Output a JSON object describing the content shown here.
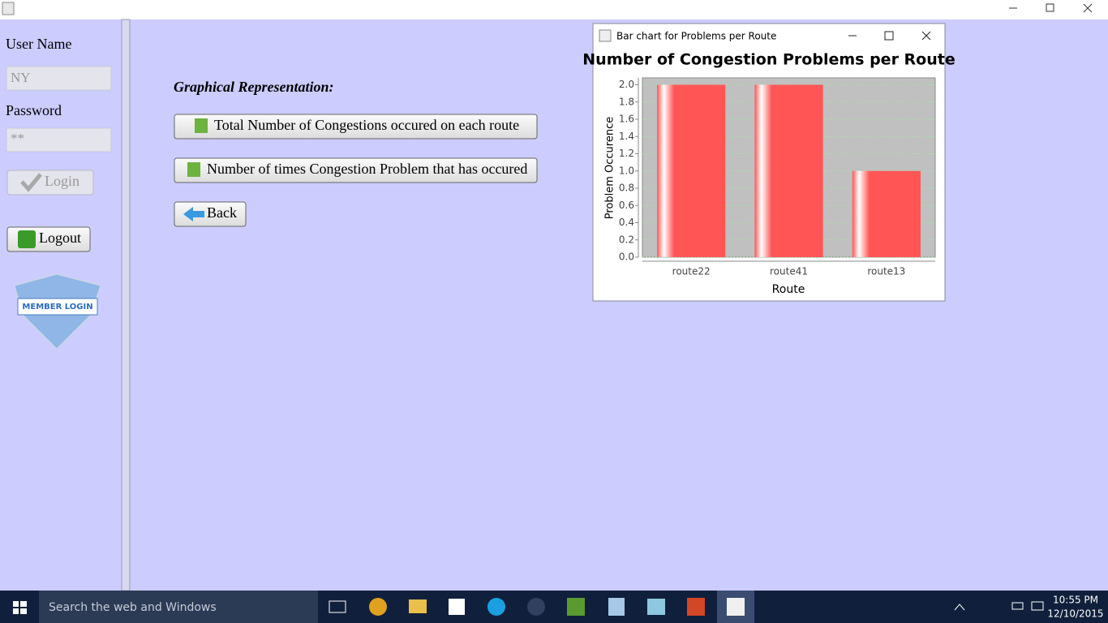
{
  "app": {
    "user_name_label": "User Name",
    "user_name_value": "NY",
    "password_label": "Password",
    "password_value": "**",
    "login_button": "Login",
    "logout_button": "Logout",
    "member_badge": "MEMBER LOGIN",
    "section_heading": "Graphical Representation:",
    "buttons": [
      "Total Number of Congestions occured on each route",
      "Number of times Congestion Problem that has occured",
      "Back"
    ],
    "chart_window_title": "Bar chart for Problems per Route"
  },
  "taskbar": {
    "search": "Search the web and Windows",
    "time": "10:55 PM",
    "date": "12/10/2015"
  },
  "chart_data": {
    "type": "bar",
    "title": "Number of Congestion Problems per Route",
    "x_label": "Route",
    "y_label": "Problem Occurence",
    "categories": [
      "route22",
      "route41",
      "route13"
    ],
    "values": [
      2,
      2,
      1
    ],
    "color": "#ff5555",
    "ylim": [
      0,
      2.08
    ],
    "yticks": [
      {
        "value": 0,
        "label": "0.0"
      },
      0.2,
      0.4,
      0.6,
      0.8,
      {
        "value": 1,
        "label": "1.0"
      },
      1.2,
      1.4,
      1.6,
      1.8,
      {
        "value": 2,
        "label": "2.0"
      }
    ],
    "grid": true
  }
}
